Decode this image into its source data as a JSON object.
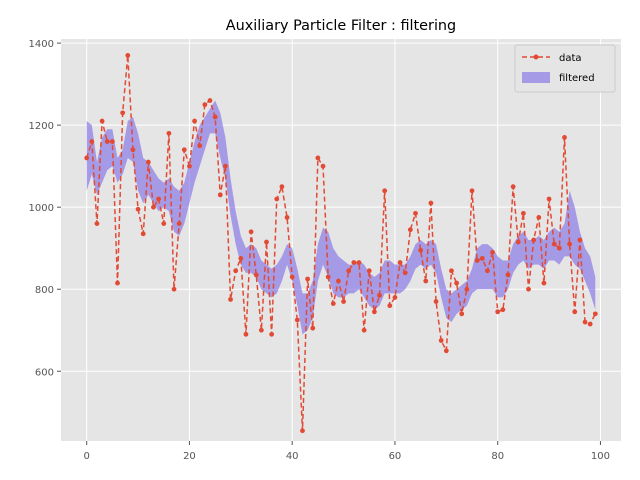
{
  "chart_data": {
    "type": "line",
    "title": "Auxiliary Particle Filter : filtering",
    "xlabel": "",
    "ylabel": "",
    "xlim": [
      -5,
      104
    ],
    "ylim": [
      430,
      1410
    ],
    "xticks": [
      0,
      20,
      40,
      60,
      80,
      100
    ],
    "yticks": [
      600,
      800,
      1000,
      1200,
      1400
    ],
    "grid": true,
    "legend_position": "top-right",
    "series": [
      {
        "name": "data",
        "kind": "line-dashed-with-markers",
        "color": "#E24A33",
        "x": [
          0,
          1,
          2,
          3,
          4,
          5,
          6,
          7,
          8,
          9,
          10,
          11,
          12,
          13,
          14,
          15,
          16,
          17,
          18,
          19,
          20,
          21,
          22,
          23,
          24,
          25,
          26,
          27,
          28,
          29,
          30,
          31,
          32,
          33,
          34,
          35,
          36,
          37,
          38,
          39,
          40,
          41,
          42,
          43,
          44,
          45,
          46,
          47,
          48,
          49,
          50,
          51,
          52,
          53,
          54,
          55,
          56,
          57,
          58,
          59,
          60,
          61,
          62,
          63,
          64,
          65,
          66,
          67,
          68,
          69,
          70,
          71,
          72,
          73,
          74,
          75,
          76,
          77,
          78,
          79,
          80,
          81,
          82,
          83,
          84,
          85,
          86,
          87,
          88,
          89,
          90,
          91,
          92,
          93,
          94,
          95,
          96,
          97,
          98,
          99
        ],
        "values": [
          1120,
          1160,
          960,
          1210,
          1160,
          1160,
          815,
          1230,
          1370,
          1140,
          995,
          935,
          1110,
          1000,
          1020,
          960,
          1180,
          800,
          960,
          1140,
          1100,
          1210,
          1150,
          1250,
          1260,
          1220,
          1030,
          1100,
          775,
          845,
          875,
          690,
          940,
          835,
          700,
          915,
          690,
          1020,
          1050,
          975,
          830,
          725,
          455,
          825,
          705,
          1120,
          1100,
          830,
          765,
          820,
          770,
          845,
          865,
          865,
          700,
          845,
          745,
          785,
          1040,
          760,
          780,
          865,
          840,
          945,
          985,
          895,
          820,
          1010,
          770,
          675,
          650,
          845,
          815,
          740,
          800,
          1040,
          870,
          875,
          845,
          890,
          745,
          750,
          835,
          1050,
          915,
          985,
          800,
          920,
          975,
          815,
          1020,
          910,
          900,
          1170,
          910,
          745,
          920,
          720,
          715,
          740
        ]
      },
      {
        "name": "filtered",
        "kind": "band",
        "color": "#7A68E6",
        "x": [
          0,
          1,
          2,
          3,
          4,
          5,
          6,
          7,
          8,
          9,
          10,
          11,
          12,
          13,
          14,
          15,
          16,
          17,
          18,
          19,
          20,
          21,
          22,
          23,
          24,
          25,
          26,
          27,
          28,
          29,
          30,
          31,
          32,
          33,
          34,
          35,
          36,
          37,
          38,
          39,
          40,
          41,
          42,
          43,
          44,
          45,
          46,
          47,
          48,
          49,
          50,
          51,
          52,
          53,
          54,
          55,
          56,
          57,
          58,
          59,
          60,
          61,
          62,
          63,
          64,
          65,
          66,
          67,
          68,
          69,
          70,
          71,
          72,
          73,
          74,
          75,
          76,
          77,
          78,
          79,
          80,
          81,
          82,
          83,
          84,
          85,
          86,
          87,
          88,
          89,
          90,
          91,
          92,
          93,
          94,
          95,
          96,
          97,
          98,
          99
        ],
        "lower": [
          1040,
          1080,
          1030,
          1060,
          1090,
          1100,
          1060,
          1080,
          1120,
          1110,
          1040,
          1010,
          1030,
          1010,
          990,
          1000,
          990,
          940,
          930,
          960,
          1010,
          1060,
          1100,
          1140,
          1180,
          1180,
          1120,
          1070,
          980,
          910,
          860,
          840,
          840,
          830,
          800,
          790,
          780,
          790,
          820,
          860,
          820,
          760,
          690,
          700,
          730,
          820,
          860,
          830,
          790,
          780,
          780,
          790,
          790,
          800,
          780,
          760,
          750,
          760,
          790,
          790,
          790,
          790,
          800,
          820,
          850,
          860,
          850,
          860,
          840,
          780,
          730,
          720,
          740,
          750,
          760,
          790,
          800,
          800,
          800,
          800,
          780,
          780,
          800,
          840,
          860,
          870,
          850,
          860,
          860,
          850,
          870,
          870,
          860,
          880,
          880,
          860,
          850,
          820,
          790,
          750
        ],
        "upper": [
          1210,
          1200,
          1110,
          1170,
          1190,
          1190,
          1120,
          1140,
          1210,
          1220,
          1180,
          1120,
          1110,
          1090,
          1070,
          1060,
          1070,
          1050,
          1040,
          1060,
          1110,
          1160,
          1200,
          1220,
          1240,
          1260,
          1230,
          1170,
          1070,
          990,
          930,
          900,
          910,
          900,
          870,
          860,
          850,
          860,
          880,
          910,
          900,
          850,
          790,
          790,
          820,
          910,
          950,
          940,
          900,
          880,
          870,
          860,
          860,
          870,
          860,
          840,
          830,
          840,
          870,
          870,
          860,
          860,
          860,
          880,
          910,
          920,
          910,
          920,
          910,
          850,
          800,
          790,
          800,
          810,
          820,
          850,
          900,
          910,
          910,
          900,
          880,
          870,
          870,
          910,
          930,
          940,
          920,
          920,
          930,
          920,
          940,
          950,
          940,
          960,
          1040,
          1000,
          940,
          900,
          880,
          830
        ]
      }
    ]
  }
}
